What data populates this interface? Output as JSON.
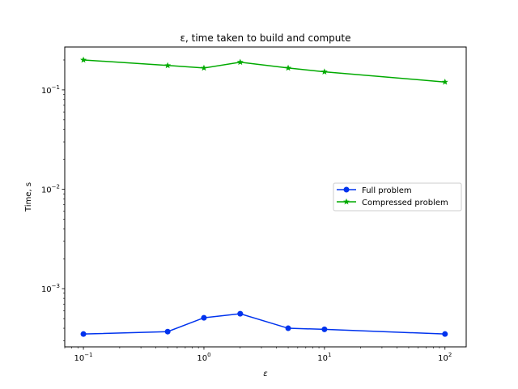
{
  "chart_data": {
    "type": "line",
    "title": "ε, time taken to build and compute",
    "xlabel": "ε",
    "ylabel": "Time, s",
    "xscale": "log",
    "yscale": "log",
    "xlim": [
      0.07,
      150
    ],
    "ylim": [
      0.00026,
      0.27
    ],
    "xticks": [
      {
        "value": 0.1,
        "base": "10",
        "exp": "−1"
      },
      {
        "value": 1,
        "base": "10",
        "exp": "0"
      },
      {
        "value": 10,
        "base": "10",
        "exp": "1"
      },
      {
        "value": 100,
        "base": "10",
        "exp": "2"
      }
    ],
    "yticks": [
      {
        "value": 0.001,
        "base": "10",
        "exp": "−3"
      },
      {
        "value": 0.01,
        "base": "10",
        "exp": "−2"
      },
      {
        "value": 0.1,
        "base": "10",
        "exp": "−1"
      }
    ],
    "grid": false,
    "legend_position": "center-right",
    "x": [
      0.1,
      0.5,
      1,
      2,
      5,
      10,
      100
    ],
    "series": [
      {
        "name": "Full problem",
        "color": "#0033ee",
        "marker": "circle",
        "values": [
          0.00035,
          0.00037,
          0.00051,
          0.00056,
          0.0004,
          0.00039,
          0.00035
        ]
      },
      {
        "name": "Compressed problem",
        "color": "#00aa00",
        "marker": "star",
        "values": [
          0.2,
          0.176,
          0.166,
          0.19,
          0.166,
          0.152,
          0.12
        ]
      }
    ]
  }
}
